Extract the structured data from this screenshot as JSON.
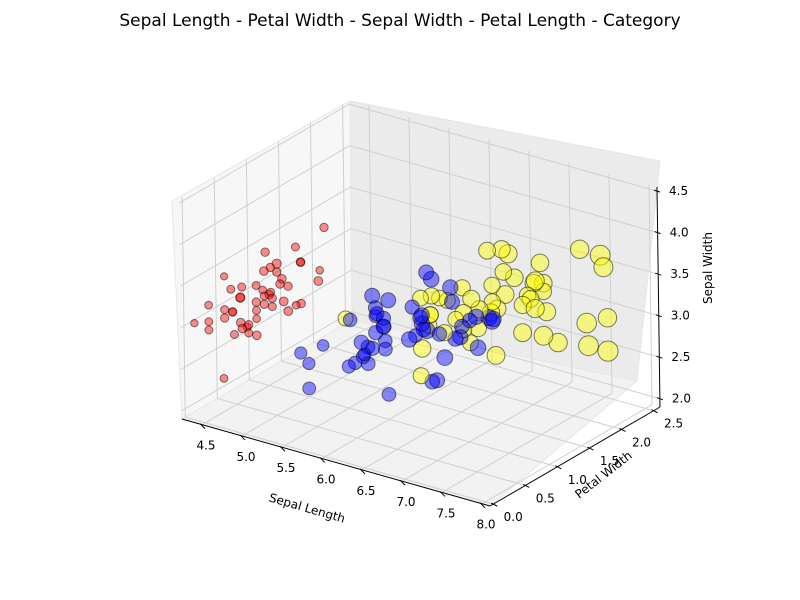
{
  "chart_data": {
    "type": "scatter3d",
    "title": "Sepal Length - Petal Width - Sepal Width - Petal Length - Category",
    "xlabel": "Sepal Length",
    "ylabel": "Petal Width",
    "zlabel": "Sepal Width",
    "size_variable": "Petal Length",
    "color_variable": "Category",
    "xlim": [
      4.3,
      7.9
    ],
    "ylim": [
      0.1,
      2.5
    ],
    "zlim": [
      2.0,
      4.4
    ],
    "xticks": [
      "4.5",
      "5.0",
      "5.5",
      "6.0",
      "6.5",
      "7.0",
      "7.5",
      "8.0"
    ],
    "yticks": [
      "0.0",
      "0.5",
      "1.0",
      "1.5",
      "2.0",
      "2.5"
    ],
    "zticks": [
      "2.0",
      "2.5",
      "3.0",
      "3.5",
      "4.0",
      "4.5"
    ],
    "grid": true,
    "series": [
      {
        "color": "#ff0000",
        "points": [
          [
            5.1,
            0.2,
            3.5,
            1.4
          ],
          [
            4.9,
            0.2,
            3.0,
            1.4
          ],
          [
            4.7,
            0.2,
            3.2,
            1.3
          ],
          [
            4.6,
            0.2,
            3.1,
            1.5
          ],
          [
            5.0,
            0.2,
            3.6,
            1.4
          ],
          [
            5.4,
            0.4,
            3.9,
            1.7
          ],
          [
            4.6,
            0.3,
            3.4,
            1.4
          ],
          [
            5.0,
            0.2,
            3.4,
            1.5
          ],
          [
            4.4,
            0.2,
            2.9,
            1.4
          ],
          [
            4.9,
            0.1,
            3.1,
            1.5
          ],
          [
            5.4,
            0.2,
            3.7,
            1.5
          ],
          [
            4.8,
            0.2,
            3.4,
            1.6
          ],
          [
            4.8,
            0.1,
            3.0,
            1.4
          ],
          [
            4.3,
            0.1,
            3.0,
            1.1
          ],
          [
            5.8,
            0.2,
            4.0,
            1.2
          ],
          [
            5.7,
            0.4,
            4.4,
            1.5
          ],
          [
            5.4,
            0.4,
            3.9,
            1.3
          ],
          [
            5.1,
            0.3,
            3.5,
            1.4
          ],
          [
            5.7,
            0.3,
            3.8,
            1.7
          ],
          [
            5.1,
            0.3,
            3.8,
            1.5
          ],
          [
            5.4,
            0.2,
            3.4,
            1.7
          ],
          [
            5.1,
            0.4,
            3.7,
            1.5
          ],
          [
            4.6,
            0.2,
            3.6,
            1.0
          ],
          [
            5.1,
            0.5,
            3.3,
            1.7
          ],
          [
            4.8,
            0.2,
            3.4,
            1.9
          ],
          [
            5.0,
            0.2,
            3.0,
            1.6
          ],
          [
            5.0,
            0.4,
            3.4,
            1.6
          ],
          [
            5.2,
            0.2,
            3.5,
            1.5
          ],
          [
            5.2,
            0.2,
            3.4,
            1.4
          ],
          [
            4.7,
            0.2,
            3.2,
            1.6
          ],
          [
            4.8,
            0.2,
            3.1,
            1.6
          ],
          [
            5.4,
            0.4,
            3.4,
            1.5
          ],
          [
            5.2,
            0.1,
            4.1,
            1.5
          ],
          [
            5.5,
            0.2,
            4.2,
            1.4
          ],
          [
            4.9,
            0.2,
            3.1,
            1.5
          ],
          [
            5.0,
            0.2,
            3.2,
            1.2
          ],
          [
            5.5,
            0.2,
            3.5,
            1.3
          ],
          [
            4.9,
            0.1,
            3.6,
            1.4
          ],
          [
            4.4,
            0.2,
            3.0,
            1.3
          ],
          [
            5.1,
            0.2,
            3.4,
            1.5
          ],
          [
            5.0,
            0.3,
            3.5,
            1.3
          ],
          [
            4.5,
            0.3,
            2.3,
            1.3
          ],
          [
            4.4,
            0.2,
            3.2,
            1.3
          ],
          [
            5.0,
            0.6,
            3.5,
            1.6
          ],
          [
            5.1,
            0.4,
            3.8,
            1.9
          ],
          [
            4.8,
            0.3,
            3.0,
            1.4
          ],
          [
            5.1,
            0.2,
            3.8,
            1.6
          ],
          [
            4.6,
            0.2,
            3.2,
            1.4
          ],
          [
            5.3,
            0.2,
            3.7,
            1.5
          ],
          [
            5.0,
            0.2,
            3.3,
            1.4
          ]
        ]
      },
      {
        "color": "#0000ff",
        "points": [
          [
            7.0,
            1.4,
            3.2,
            4.7
          ],
          [
            6.4,
            1.5,
            3.2,
            4.5
          ],
          [
            6.9,
            1.5,
            3.1,
            4.9
          ],
          [
            5.5,
            1.3,
            2.3,
            4.0
          ],
          [
            6.5,
            1.5,
            2.8,
            4.6
          ],
          [
            5.7,
            1.3,
            2.8,
            4.5
          ],
          [
            6.3,
            1.6,
            3.3,
            4.7
          ],
          [
            4.9,
            1.0,
            2.4,
            3.3
          ],
          [
            6.6,
            1.3,
            2.9,
            4.6
          ],
          [
            5.2,
            1.4,
            2.7,
            3.9
          ],
          [
            5.0,
            1.0,
            2.0,
            3.5
          ],
          [
            5.9,
            1.5,
            3.0,
            4.2
          ],
          [
            6.0,
            1.0,
            2.2,
            4.0
          ],
          [
            6.1,
            1.4,
            2.9,
            4.7
          ],
          [
            5.6,
            1.3,
            2.9,
            3.6
          ],
          [
            6.7,
            1.4,
            3.1,
            4.4
          ],
          [
            5.6,
            1.5,
            3.0,
            4.5
          ],
          [
            5.8,
            1.0,
            2.7,
            4.1
          ],
          [
            6.2,
            1.5,
            2.2,
            4.5
          ],
          [
            5.6,
            1.1,
            2.5,
            3.9
          ],
          [
            5.9,
            1.8,
            3.2,
            4.8
          ],
          [
            6.1,
            1.3,
            2.8,
            4.0
          ],
          [
            6.3,
            1.5,
            2.5,
            4.9
          ],
          [
            6.1,
            1.2,
            2.8,
            4.7
          ],
          [
            6.4,
            1.3,
            2.9,
            4.3
          ],
          [
            6.6,
            1.4,
            3.0,
            4.4
          ],
          [
            6.8,
            1.4,
            2.8,
            4.8
          ],
          [
            6.7,
            1.7,
            3.0,
            5.0
          ],
          [
            6.0,
            1.5,
            2.9,
            4.5
          ],
          [
            5.7,
            1.0,
            2.6,
            3.5
          ],
          [
            5.5,
            1.1,
            2.4,
            3.8
          ],
          [
            5.5,
            1.0,
            2.4,
            3.7
          ],
          [
            5.8,
            1.2,
            2.7,
            3.9
          ],
          [
            6.0,
            1.6,
            2.7,
            5.1
          ],
          [
            5.4,
            1.5,
            3.0,
            4.5
          ],
          [
            6.0,
            1.6,
            3.4,
            4.5
          ],
          [
            6.7,
            1.5,
            3.1,
            4.7
          ],
          [
            6.3,
            1.3,
            2.3,
            4.4
          ],
          [
            5.6,
            1.3,
            3.0,
            4.1
          ],
          [
            5.5,
            1.3,
            2.5,
            4.0
          ],
          [
            5.5,
            1.2,
            2.6,
            4.4
          ],
          [
            6.1,
            1.4,
            3.0,
            4.6
          ],
          [
            5.8,
            1.2,
            2.6,
            4.0
          ],
          [
            5.0,
            1.0,
            2.3,
            3.3
          ],
          [
            5.6,
            1.3,
            2.7,
            4.2
          ],
          [
            5.7,
            1.2,
            3.0,
            4.2
          ],
          [
            5.7,
            1.3,
            2.9,
            4.2
          ],
          [
            6.2,
            1.3,
            2.9,
            4.3
          ],
          [
            5.1,
            1.1,
            2.5,
            3.0
          ],
          [
            5.7,
            1.3,
            2.8,
            4.1
          ]
        ]
      },
      {
        "color": "#ffff00",
        "points": [
          [
            6.3,
            2.5,
            3.3,
            6.0
          ],
          [
            5.8,
            1.9,
            2.7,
            5.1
          ],
          [
            7.1,
            2.1,
            3.0,
            5.9
          ],
          [
            6.3,
            1.8,
            2.9,
            5.6
          ],
          [
            6.5,
            2.2,
            3.0,
            5.8
          ],
          [
            7.6,
            2.1,
            3.0,
            6.6
          ],
          [
            4.9,
            1.7,
            2.5,
            4.5
          ],
          [
            7.3,
            1.8,
            2.9,
            6.3
          ],
          [
            6.7,
            1.8,
            2.5,
            5.8
          ],
          [
            7.2,
            2.5,
            3.6,
            6.1
          ],
          [
            6.5,
            2.0,
            3.2,
            5.1
          ],
          [
            6.4,
            1.9,
            2.7,
            5.3
          ],
          [
            6.8,
            2.1,
            3.0,
            5.5
          ],
          [
            5.7,
            2.0,
            2.5,
            5.0
          ],
          [
            5.8,
            2.4,
            2.8,
            5.1
          ],
          [
            6.4,
            2.3,
            3.2,
            5.3
          ],
          [
            6.5,
            1.8,
            3.0,
            5.5
          ],
          [
            7.7,
            2.2,
            3.8,
            6.7
          ],
          [
            7.7,
            2.3,
            2.6,
            6.9
          ],
          [
            6.0,
            1.5,
            2.2,
            5.0
          ],
          [
            6.9,
            2.3,
            3.2,
            5.7
          ],
          [
            5.6,
            2.0,
            2.8,
            4.9
          ],
          [
            7.7,
            2.0,
            2.8,
            6.7
          ],
          [
            6.3,
            1.8,
            2.7,
            4.9
          ],
          [
            6.7,
            2.1,
            3.3,
            5.7
          ],
          [
            7.2,
            1.8,
            3.2,
            6.0
          ],
          [
            6.2,
            1.8,
            2.8,
            4.8
          ],
          [
            6.1,
            1.8,
            3.0,
            4.9
          ],
          [
            6.4,
            2.1,
            2.8,
            5.6
          ],
          [
            7.2,
            1.6,
            3.0,
            5.8
          ],
          [
            7.4,
            1.9,
            2.8,
            6.1
          ],
          [
            7.9,
            2.0,
            3.8,
            6.4
          ],
          [
            6.4,
            2.2,
            2.8,
            5.6
          ],
          [
            6.3,
            1.5,
            2.8,
            5.1
          ],
          [
            6.1,
            1.4,
            2.6,
            5.6
          ],
          [
            7.7,
            2.3,
            3.0,
            6.1
          ],
          [
            6.3,
            2.4,
            3.4,
            5.6
          ],
          [
            6.4,
            1.8,
            3.1,
            5.5
          ],
          [
            6.0,
            1.8,
            3.0,
            4.8
          ],
          [
            6.9,
            2.1,
            3.1,
            5.4
          ],
          [
            6.7,
            2.4,
            3.1,
            5.6
          ],
          [
            6.9,
            2.3,
            3.1,
            5.1
          ],
          [
            5.8,
            1.9,
            2.7,
            5.1
          ],
          [
            6.8,
            2.3,
            3.2,
            5.9
          ],
          [
            6.7,
            2.5,
            3.3,
            5.7
          ],
          [
            6.7,
            2.3,
            3.0,
            5.2
          ],
          [
            6.3,
            1.9,
            2.5,
            5.0
          ],
          [
            6.5,
            2.0,
            3.0,
            5.2
          ],
          [
            6.2,
            2.3,
            3.4,
            5.4
          ],
          [
            5.9,
            1.8,
            3.0,
            5.1
          ]
        ]
      }
    ]
  }
}
